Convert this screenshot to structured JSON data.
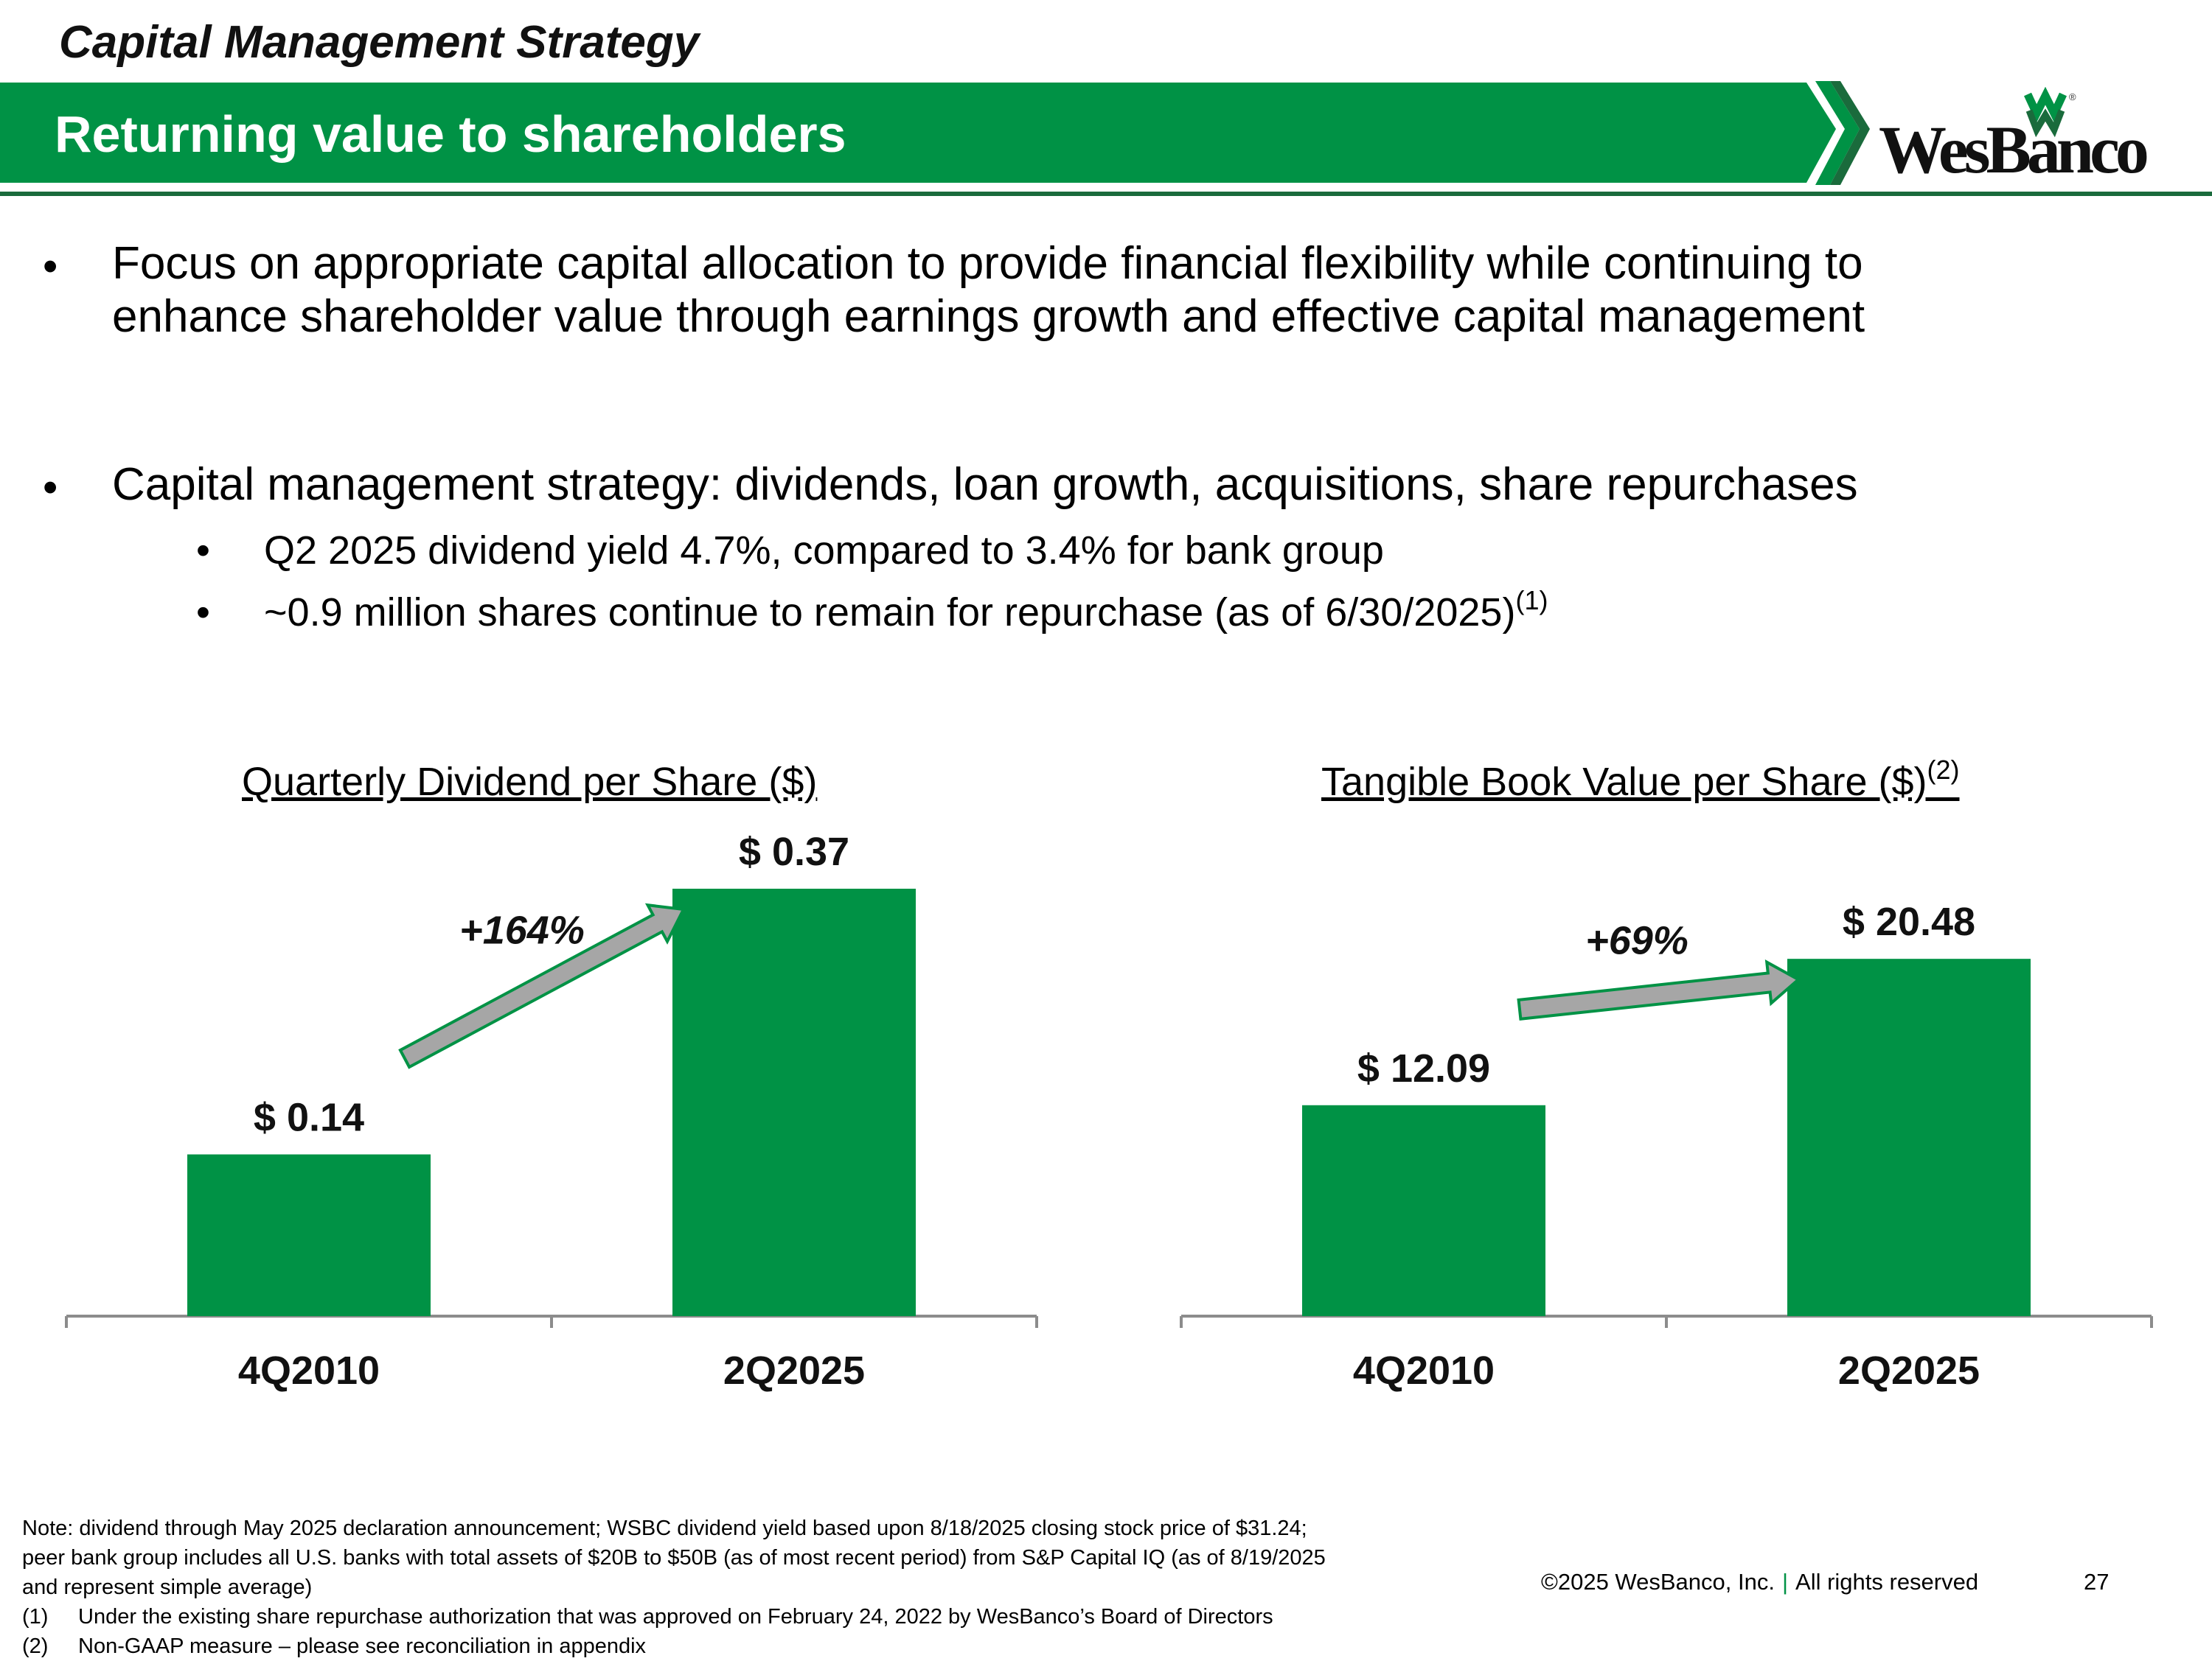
{
  "header": {
    "section_title": "Capital Management Strategy",
    "banner_title": "Returning value to shareholders",
    "logo_text": "WesBanco",
    "registered_mark": "®"
  },
  "colors": {
    "brand_green": "#009245",
    "dark_green": "#1a6b3c",
    "arrow_gray": "#a6a6a6",
    "axis_gray": "#8c8c8c"
  },
  "bullets": [
    {
      "text": "Focus on appropriate capital allocation to provide financial flexibility while continuing to enhance shareholder value through earnings growth and effective capital management",
      "sub_items": []
    },
    {
      "text": "Capital management strategy:  dividends, loan growth, acquisitions, share repurchases",
      "sub_items": [
        {
          "text": "Q2 2025 dividend yield 4.7%, compared to 3.4% for bank group",
          "sup": ""
        },
        {
          "text": "~0.9 million shares continue to remain for repurchase (as of 6/30/2025)",
          "sup": "(1)"
        }
      ]
    }
  ],
  "bullet_marker": "•",
  "chart_data": [
    {
      "type": "bar",
      "title": "Quarterly Dividend per Share ($)",
      "title_sup": "",
      "categories": [
        "4Q2010",
        "2Q2025"
      ],
      "values": [
        0.14,
        0.37
      ],
      "data_labels": [
        "$ 0.14",
        "$ 0.37"
      ],
      "growth_label": "+164%",
      "ylim": [
        0,
        0.37
      ],
      "grid": false,
      "legend": "none"
    },
    {
      "type": "bar",
      "title": "Tangible Book Value per Share ($)",
      "title_sup": "(2)",
      "categories": [
        "4Q2010",
        "2Q2025"
      ],
      "values": [
        12.09,
        20.48
      ],
      "data_labels": [
        "$ 12.09",
        "$ 20.48"
      ],
      "growth_label": "+69%",
      "ylim": [
        0,
        24.5
      ],
      "grid": false,
      "legend": "none"
    }
  ],
  "footnotes": {
    "note_line1": "Note: dividend through May 2025 declaration announcement; WSBC dividend yield based upon 8/18/2025 closing stock price of $31.24;",
    "note_line2": "peer bank group includes all U.S. banks with total assets of $20B to $50B (as of most recent period) from S&P Capital IQ (as of 8/19/2025",
    "note_line3": "and represent simple average)",
    "fn1_marker": "(1)",
    "fn1_text": "Under the existing share repurchase authorization that was approved on February 24, 2022 by WesBanco’s Board of Directors",
    "fn2_marker": "(2)",
    "fn2_text": "Non-GAAP measure – please see reconciliation in appendix"
  },
  "footer": {
    "copyright": "©2025 WesBanco, Inc.",
    "separator": "|",
    "rights": "All rights reserved",
    "page_number": "27"
  }
}
